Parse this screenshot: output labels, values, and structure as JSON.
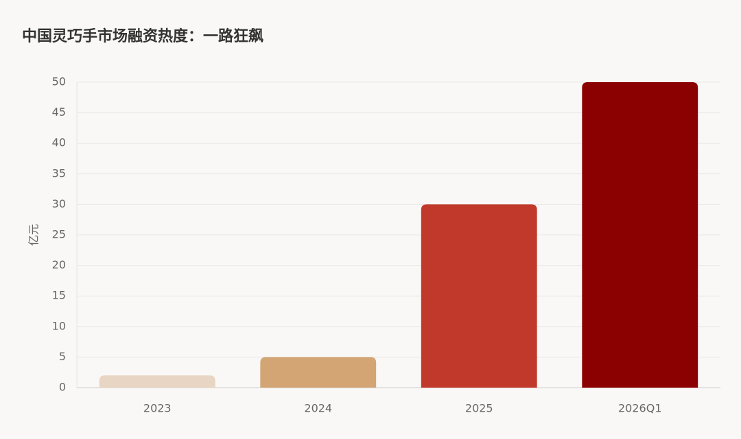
{
  "chart_data": {
    "type": "bar",
    "title": "中国灵巧手市场融资热度：一路狂飙",
    "y_label": "亿元",
    "categories": [
      "2023",
      "2024",
      "2025",
      "2026Q1"
    ],
    "values": [
      2,
      5,
      30,
      50
    ],
    "colors": [
      "#e8d5c4",
      "#d4a574",
      "#c0392b",
      "#8b0000"
    ],
    "ylim": [
      0,
      50
    ],
    "yticks": [
      0,
      5,
      10,
      15,
      20,
      25,
      30,
      35,
      40,
      45,
      50
    ],
    "grid": true
  }
}
